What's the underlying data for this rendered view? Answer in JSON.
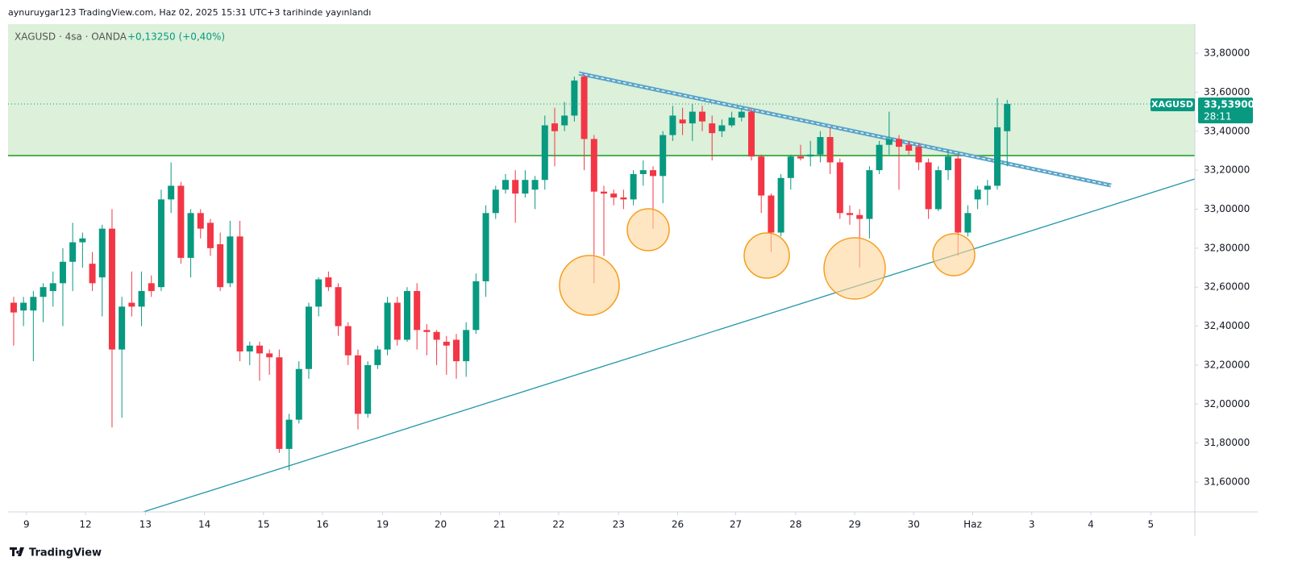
{
  "header": "aynuruygar123 TradingView.com, Haz 02, 2025 15:31 UTC+3 tarihinde yayınlandı",
  "footer": "TradingView",
  "chart_data": {
    "type": "candlestick",
    "symbol": "XAGUSD · 4sa · OANDA",
    "change": "+0,13250 (+0,40%)",
    "price_tag": {
      "symbol": "XAGUSD",
      "price": "33,53900",
      "countdown": "28:11"
    },
    "up_color": "#089981",
    "down_color": "#f23645",
    "xlim": [
      -0.57,
      120.08
    ],
    "ylim": [
      31.447,
      33.949
    ],
    "yticks": [
      {
        "value": 31.6,
        "label": "31,60000"
      },
      {
        "value": 31.8,
        "label": "31,80000"
      },
      {
        "value": 32.0,
        "label": "32,00000"
      },
      {
        "value": 32.2,
        "label": "32,20000"
      },
      {
        "value": 32.4,
        "label": "32,40000"
      },
      {
        "value": 32.6,
        "label": "32,60000"
      },
      {
        "value": 32.8,
        "label": "32,80000"
      },
      {
        "value": 33.0,
        "label": "33,00000"
      },
      {
        "value": 33.2,
        "label": "33,20000"
      },
      {
        "value": 33.4,
        "label": "33,40000"
      },
      {
        "value": 33.6,
        "label": "33,60000"
      },
      {
        "value": 33.8,
        "label": "33,80000"
      }
    ],
    "xticks": [
      {
        "value": 1.3,
        "label": "9"
      },
      {
        "value": 7.3,
        "label": "12"
      },
      {
        "value": 13.4,
        "label": "13"
      },
      {
        "value": 19.4,
        "label": "14"
      },
      {
        "value": 25.4,
        "label": "15"
      },
      {
        "value": 31.4,
        "label": "16"
      },
      {
        "value": 37.5,
        "label": "19"
      },
      {
        "value": 43.4,
        "label": "20"
      },
      {
        "value": 49.4,
        "label": "21"
      },
      {
        "value": 55.4,
        "label": "22"
      },
      {
        "value": 61.5,
        "label": "23"
      },
      {
        "value": 67.5,
        "label": "26"
      },
      {
        "value": 73.4,
        "label": "27"
      },
      {
        "value": 79.5,
        "label": "28"
      },
      {
        "value": 85.5,
        "label": "29"
      },
      {
        "value": 91.5,
        "label": "30"
      },
      {
        "value": 97.5,
        "label": "Haz"
      },
      {
        "value": 103.5,
        "label": "3"
      },
      {
        "value": 109.5,
        "label": "4"
      },
      {
        "value": 115.6,
        "label": "5"
      }
    ],
    "open": [
      32.52,
      32.48,
      32.48,
      32.55,
      32.58,
      32.62,
      32.73,
      32.83,
      32.72,
      32.65,
      32.9,
      32.28,
      32.52,
      32.5,
      32.62,
      32.6,
      33.05,
      33.12,
      32.75,
      32.98,
      32.93,
      32.82,
      32.62,
      32.86,
      32.27,
      32.3,
      32.26,
      32.24,
      31.77,
      31.92,
      32.18,
      32.5,
      32.65,
      32.6,
      32.4,
      32.25,
      31.95,
      32.2,
      32.28,
      32.52,
      32.33,
      32.58,
      32.38,
      32.37,
      32.32,
      32.33,
      32.22,
      32.38,
      32.63,
      32.98,
      33.1,
      33.15,
      33.08,
      33.1,
      33.15,
      33.44,
      33.43,
      33.48,
      33.68,
      33.36,
      33.09,
      33.08,
      33.06,
      33.05,
      33.18,
      33.2,
      33.17,
      33.38,
      33.46,
      33.44,
      33.5,
      33.44,
      33.4,
      33.43,
      33.47,
      33.5,
      33.27,
      33.07,
      32.88,
      33.16,
      33.27,
      33.27,
      33.28,
      33.37,
      33.24,
      32.98,
      32.97,
      32.95,
      33.2,
      33.33,
      33.36,
      33.33,
      33.32,
      33.24,
      33.0,
      33.2,
      33.26,
      32.88,
      33.05,
      33.1,
      33.12,
      33.4
    ],
    "high": [
      32.55,
      32.55,
      32.58,
      32.62,
      32.68,
      32.8,
      32.93,
      32.88,
      32.78,
      32.92,
      33.0,
      32.55,
      32.68,
      32.68,
      32.66,
      33.1,
      33.24,
      33.14,
      33.0,
      33.0,
      32.95,
      32.88,
      32.94,
      32.94,
      32.32,
      32.32,
      32.28,
      32.28,
      31.95,
      32.22,
      32.52,
      32.65,
      32.68,
      32.62,
      32.42,
      32.28,
      32.22,
      32.3,
      32.55,
      32.55,
      32.6,
      32.62,
      32.41,
      32.38,
      32.35,
      32.36,
      32.42,
      32.67,
      33.02,
      33.12,
      33.18,
      33.2,
      33.2,
      33.17,
      33.48,
      33.52,
      33.55,
      33.68,
      33.69,
      33.38,
      33.12,
      33.1,
      33.1,
      33.2,
      33.25,
      33.22,
      33.4,
      33.53,
      33.52,
      33.54,
      33.53,
      33.48,
      33.46,
      33.5,
      33.52,
      33.52,
      33.28,
      33.08,
      33.18,
      33.28,
      33.33,
      33.35,
      33.4,
      33.42,
      33.26,
      33.02,
      33.0,
      33.22,
      33.35,
      33.5,
      33.38,
      33.35,
      33.34,
      33.26,
      33.22,
      33.3,
      33.28,
      33.02,
      33.12,
      33.15,
      33.57,
      33.56
    ],
    "low": [
      32.3,
      32.4,
      32.22,
      32.42,
      32.5,
      32.4,
      32.58,
      32.7,
      32.58,
      32.45,
      31.88,
      31.93,
      32.45,
      32.4,
      32.55,
      32.58,
      32.98,
      32.72,
      32.65,
      32.85,
      32.76,
      32.58,
      32.6,
      32.22,
      32.2,
      32.12,
      32.15,
      31.75,
      31.66,
      31.9,
      32.13,
      32.45,
      32.58,
      32.35,
      32.2,
      31.87,
      31.93,
      32.18,
      32.25,
      32.3,
      32.32,
      32.28,
      32.25,
      32.2,
      32.15,
      32.13,
      32.14,
      32.36,
      32.55,
      32.95,
      33.08,
      32.93,
      33.06,
      33.0,
      33.1,
      33.22,
      33.4,
      33.45,
      33.2,
      32.62,
      32.76,
      33.02,
      33.0,
      33.02,
      33.12,
      32.9,
      33.03,
      33.35,
      33.38,
      33.35,
      33.4,
      33.25,
      33.37,
      33.42,
      33.45,
      33.25,
      32.98,
      32.78,
      32.86,
      33.1,
      33.25,
      33.22,
      33.24,
      33.18,
      32.95,
      32.92,
      32.7,
      32.85,
      33.18,
      33.28,
      33.1,
      33.28,
      33.2,
      32.95,
      32.99,
      33.15,
      32.76,
      32.86,
      33.0,
      33.02,
      33.1,
      33.22
    ],
    "close": [
      32.47,
      32.52,
      32.55,
      32.6,
      32.62,
      32.73,
      32.83,
      32.85,
      32.62,
      32.9,
      32.28,
      32.5,
      32.5,
      32.58,
      32.58,
      33.05,
      33.12,
      32.75,
      32.98,
      32.9,
      32.8,
      32.6,
      32.86,
      32.27,
      32.3,
      32.26,
      32.24,
      31.77,
      31.92,
      32.18,
      32.5,
      32.64,
      32.6,
      32.4,
      32.25,
      31.95,
      32.2,
      32.28,
      32.52,
      32.33,
      32.58,
      32.38,
      32.37,
      32.33,
      32.3,
      32.22,
      32.38,
      32.63,
      32.98,
      33.1,
      33.15,
      33.08,
      33.15,
      33.15,
      33.43,
      33.4,
      33.48,
      33.66,
      33.36,
      33.09,
      33.08,
      33.06,
      33.05,
      33.18,
      33.2,
      33.17,
      33.38,
      33.48,
      33.44,
      33.5,
      33.45,
      33.39,
      33.43,
      33.47,
      33.5,
      33.27,
      33.07,
      32.88,
      33.16,
      33.27,
      33.26,
      33.28,
      33.37,
      33.24,
      32.98,
      32.97,
      32.95,
      33.2,
      33.33,
      33.36,
      33.32,
      33.3,
      33.24,
      33.0,
      33.2,
      33.27,
      32.88,
      32.98,
      33.1,
      33.12,
      33.42,
      33.54
    ]
  }
}
